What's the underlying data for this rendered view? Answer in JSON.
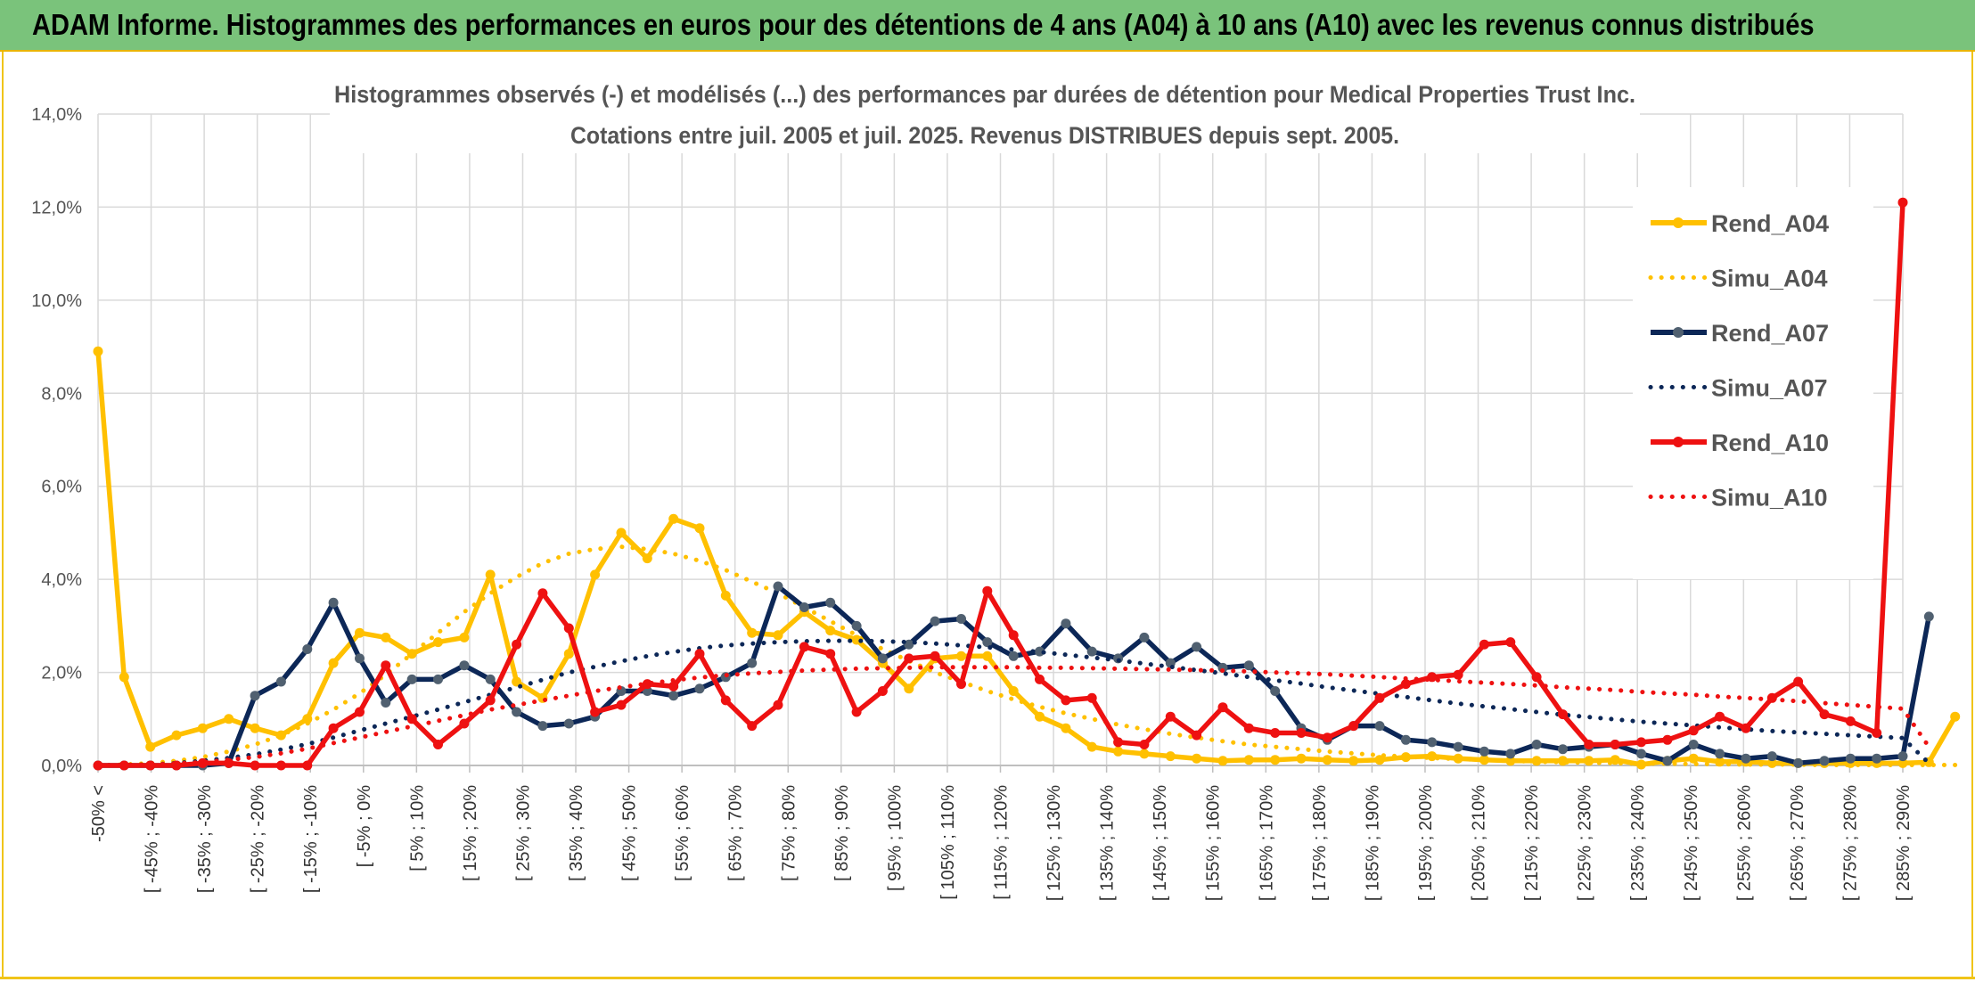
{
  "header": {
    "title": "ADAM Informe. Histogrammes des performances en euros pour des détentions de 4 ans (A04) à 10 ans (A10) avec les revenus connus distribués"
  },
  "colors": {
    "header_bg": "#7ac37b",
    "accent": "#f0c419",
    "a04": "#ffc000",
    "a07": "#0c2757",
    "a10": "#ee1111",
    "grid": "#d9d9d9"
  },
  "chart_data": {
    "type": "line",
    "title": "Histogrammes observés (-) et modélisés (...) des performances par durées de détention pour Medical Properties Trust Inc.",
    "subtitle": "Cotations entre juil. 2005 et juil. 2025. Revenus DISTRIBUES depuis sept. 2005.",
    "ylim": [
      0,
      14
    ],
    "y_unit": "%",
    "y_ticks": [
      "0,0%",
      "2,0%",
      "4,0%",
      "6,0%",
      "8,0%",
      "10,0%",
      "12,0%",
      "14,0%"
    ],
    "grid": true,
    "legend_position": "right",
    "x_tick_labels": [
      "-50% <",
      "[ -45% ; -40%",
      "[ -35% ; -30%",
      "[ -25% ; -20%",
      "[ -15% ; -10%",
      "[ -5% ; 0%",
      "[ 5% ; 10%",
      "[ 15% ; 20%",
      "[ 25% ; 30%",
      "[ 35% ; 40%",
      "[ 45% ; 50%",
      "[ 55% ; 60%",
      "[ 65% ; 70%",
      "[ 75% ; 80%",
      "[ 85% ; 90%",
      "[ 95% ; 100%",
      "[ 105% ; 110%",
      "[ 115% ; 120%",
      "[ 125% ; 130%",
      "[ 135% ; 140%",
      "[ 145% ; 150%",
      "[ 155% ; 160%",
      "[ 165% ; 170%",
      "[ 175% ; 180%",
      "[ 185% ; 190%",
      "[ 195% ; 200%",
      "[ 205% ; 210%",
      "[ 215% ; 220%",
      "[ 225% ; 230%",
      "[ 235% ; 240%",
      "[ 245% ; 250%",
      "[ 255% ; 260%",
      "[ 265% ; 270%",
      "[ 275% ; 280%",
      "[ 285% ; 290%"
    ],
    "series": [
      {
        "name": "Rend_A04",
        "style": "solid",
        "color": "#ffc000",
        "values": [
          8.9,
          1.9,
          0.4,
          0.65,
          0.8,
          1.0,
          0.8,
          0.65,
          1.0,
          2.2,
          2.85,
          2.75,
          2.4,
          2.65,
          2.75,
          4.1,
          1.8,
          1.45,
          2.4,
          4.1,
          5.0,
          4.45,
          5.3,
          5.1,
          3.65,
          2.85,
          2.8,
          3.3,
          2.9,
          2.7,
          2.2,
          1.65,
          2.3,
          2.35,
          2.35,
          1.6,
          1.05,
          0.8,
          0.4,
          0.3,
          0.25,
          0.2,
          0.15,
          0.1,
          0.12,
          0.12,
          0.15,
          0.12,
          0.1,
          0.12,
          0.18,
          0.2,
          0.15,
          0.12,
          0.1,
          0.1,
          0.1,
          0.1,
          0.12,
          0.02,
          0.1,
          0.15,
          0.08,
          0.08,
          0.05,
          0.05,
          0.05,
          0.05,
          0.05,
          0.05,
          0.07,
          1.05
        ]
      },
      {
        "name": "Simu_A04",
        "style": "dotted",
        "color": "#ffc000",
        "values": [
          0.0,
          0.02,
          0.05,
          0.1,
          0.18,
          0.3,
          0.45,
          0.65,
          0.9,
          1.2,
          1.55,
          1.95,
          2.4,
          2.85,
          3.3,
          3.7,
          4.05,
          4.35,
          4.55,
          4.65,
          4.7,
          4.65,
          4.55,
          4.4,
          4.2,
          3.95,
          3.7,
          3.4,
          3.1,
          2.8,
          2.5,
          2.25,
          2.0,
          1.8,
          1.6,
          1.42,
          1.26,
          1.12,
          1.0,
          0.88,
          0.78,
          0.68,
          0.6,
          0.52,
          0.45,
          0.4,
          0.35,
          0.3,
          0.26,
          0.22,
          0.19,
          0.16,
          0.14,
          0.12,
          0.1,
          0.08,
          0.07,
          0.06,
          0.05,
          0.04,
          0.04,
          0.03,
          0.03,
          0.02,
          0.02,
          0.02,
          0.01,
          0.01,
          0.01,
          0.01,
          0.01,
          0.01
        ]
      },
      {
        "name": "Rend_A07",
        "style": "solid",
        "color": "#0c2757",
        "values": [
          0.0,
          0.0,
          0.0,
          0.0,
          0.0,
          0.05,
          1.5,
          1.8,
          2.5,
          3.5,
          2.3,
          1.35,
          1.85,
          1.85,
          2.15,
          1.85,
          1.15,
          0.85,
          0.9,
          1.05,
          1.6,
          1.6,
          1.5,
          1.65,
          1.9,
          2.2,
          3.85,
          3.4,
          3.5,
          3.0,
          2.3,
          2.6,
          3.1,
          3.15,
          2.65,
          2.35,
          2.45,
          3.05,
          2.45,
          2.3,
          2.75,
          2.2,
          2.55,
          2.1,
          2.15,
          1.6,
          0.8,
          0.55,
          0.85,
          0.85,
          0.55,
          0.5,
          0.4,
          0.3,
          0.25,
          0.45,
          0.35,
          0.4,
          0.45,
          0.25,
          0.1,
          0.45,
          0.25,
          0.15,
          0.2,
          0.05,
          0.1,
          0.15,
          0.15,
          0.2,
          3.2
        ]
      },
      {
        "name": "Simu_A07",
        "style": "dotted",
        "color": "#0c2757",
        "values": [
          0.0,
          0.01,
          0.02,
          0.05,
          0.1,
          0.16,
          0.24,
          0.34,
          0.46,
          0.6,
          0.75,
          0.9,
          1.05,
          1.2,
          1.36,
          1.52,
          1.68,
          1.84,
          2.0,
          2.12,
          2.24,
          2.35,
          2.44,
          2.52,
          2.58,
          2.62,
          2.65,
          2.67,
          2.68,
          2.68,
          2.67,
          2.65,
          2.62,
          2.58,
          2.54,
          2.49,
          2.44,
          2.38,
          2.32,
          2.26,
          2.19,
          2.12,
          2.05,
          1.98,
          1.9,
          1.83,
          1.76,
          1.68,
          1.61,
          1.54,
          1.47,
          1.4,
          1.33,
          1.27,
          1.21,
          1.15,
          1.09,
          1.04,
          0.99,
          0.94,
          0.9,
          0.86,
          0.82,
          0.78,
          0.74,
          0.71,
          0.68,
          0.65,
          0.62,
          0.59,
          0.05
        ]
      },
      {
        "name": "Rend_A10",
        "style": "solid",
        "color": "#ee1111",
        "values": [
          0.0,
          0.0,
          0.0,
          0.0,
          0.05,
          0.05,
          0.0,
          0.0,
          0.0,
          0.8,
          1.15,
          2.15,
          1.0,
          0.45,
          0.9,
          1.4,
          2.6,
          3.7,
          2.95,
          1.15,
          1.3,
          1.75,
          1.7,
          2.4,
          1.4,
          0.85,
          1.3,
          2.55,
          2.4,
          1.15,
          1.6,
          2.3,
          2.35,
          1.75,
          3.75,
          2.8,
          1.85,
          1.4,
          1.45,
          0.5,
          0.45,
          1.05,
          0.65,
          1.25,
          0.8,
          0.7,
          0.7,
          0.6,
          0.85,
          1.45,
          1.75,
          1.9,
          1.95,
          2.6,
          2.65,
          1.9,
          1.1,
          0.45,
          0.45,
          0.5,
          0.55,
          0.75,
          1.05,
          0.8,
          1.45,
          1.8,
          1.1,
          0.95,
          0.7,
          12.1
        ]
      },
      {
        "name": "Simu_A10",
        "style": "dotted",
        "color": "#ee1111",
        "values": [
          0.0,
          0.01,
          0.02,
          0.04,
          0.07,
          0.12,
          0.18,
          0.26,
          0.36,
          0.48,
          0.6,
          0.72,
          0.84,
          0.96,
          1.08,
          1.2,
          1.3,
          1.4,
          1.5,
          1.6,
          1.68,
          1.76,
          1.83,
          1.89,
          1.94,
          1.98,
          2.01,
          2.04,
          2.06,
          2.08,
          2.09,
          2.1,
          2.11,
          2.11,
          2.11,
          2.11,
          2.1,
          2.1,
          2.09,
          2.08,
          2.07,
          2.06,
          2.05,
          2.04,
          2.02,
          2.0,
          1.98,
          1.96,
          1.93,
          1.9,
          1.87,
          1.84,
          1.81,
          1.78,
          1.75,
          1.72,
          1.68,
          1.65,
          1.62,
          1.58,
          1.55,
          1.52,
          1.48,
          1.45,
          1.42,
          1.38,
          1.34,
          1.3,
          1.26,
          1.22,
          0.4
        ]
      }
    ]
  }
}
